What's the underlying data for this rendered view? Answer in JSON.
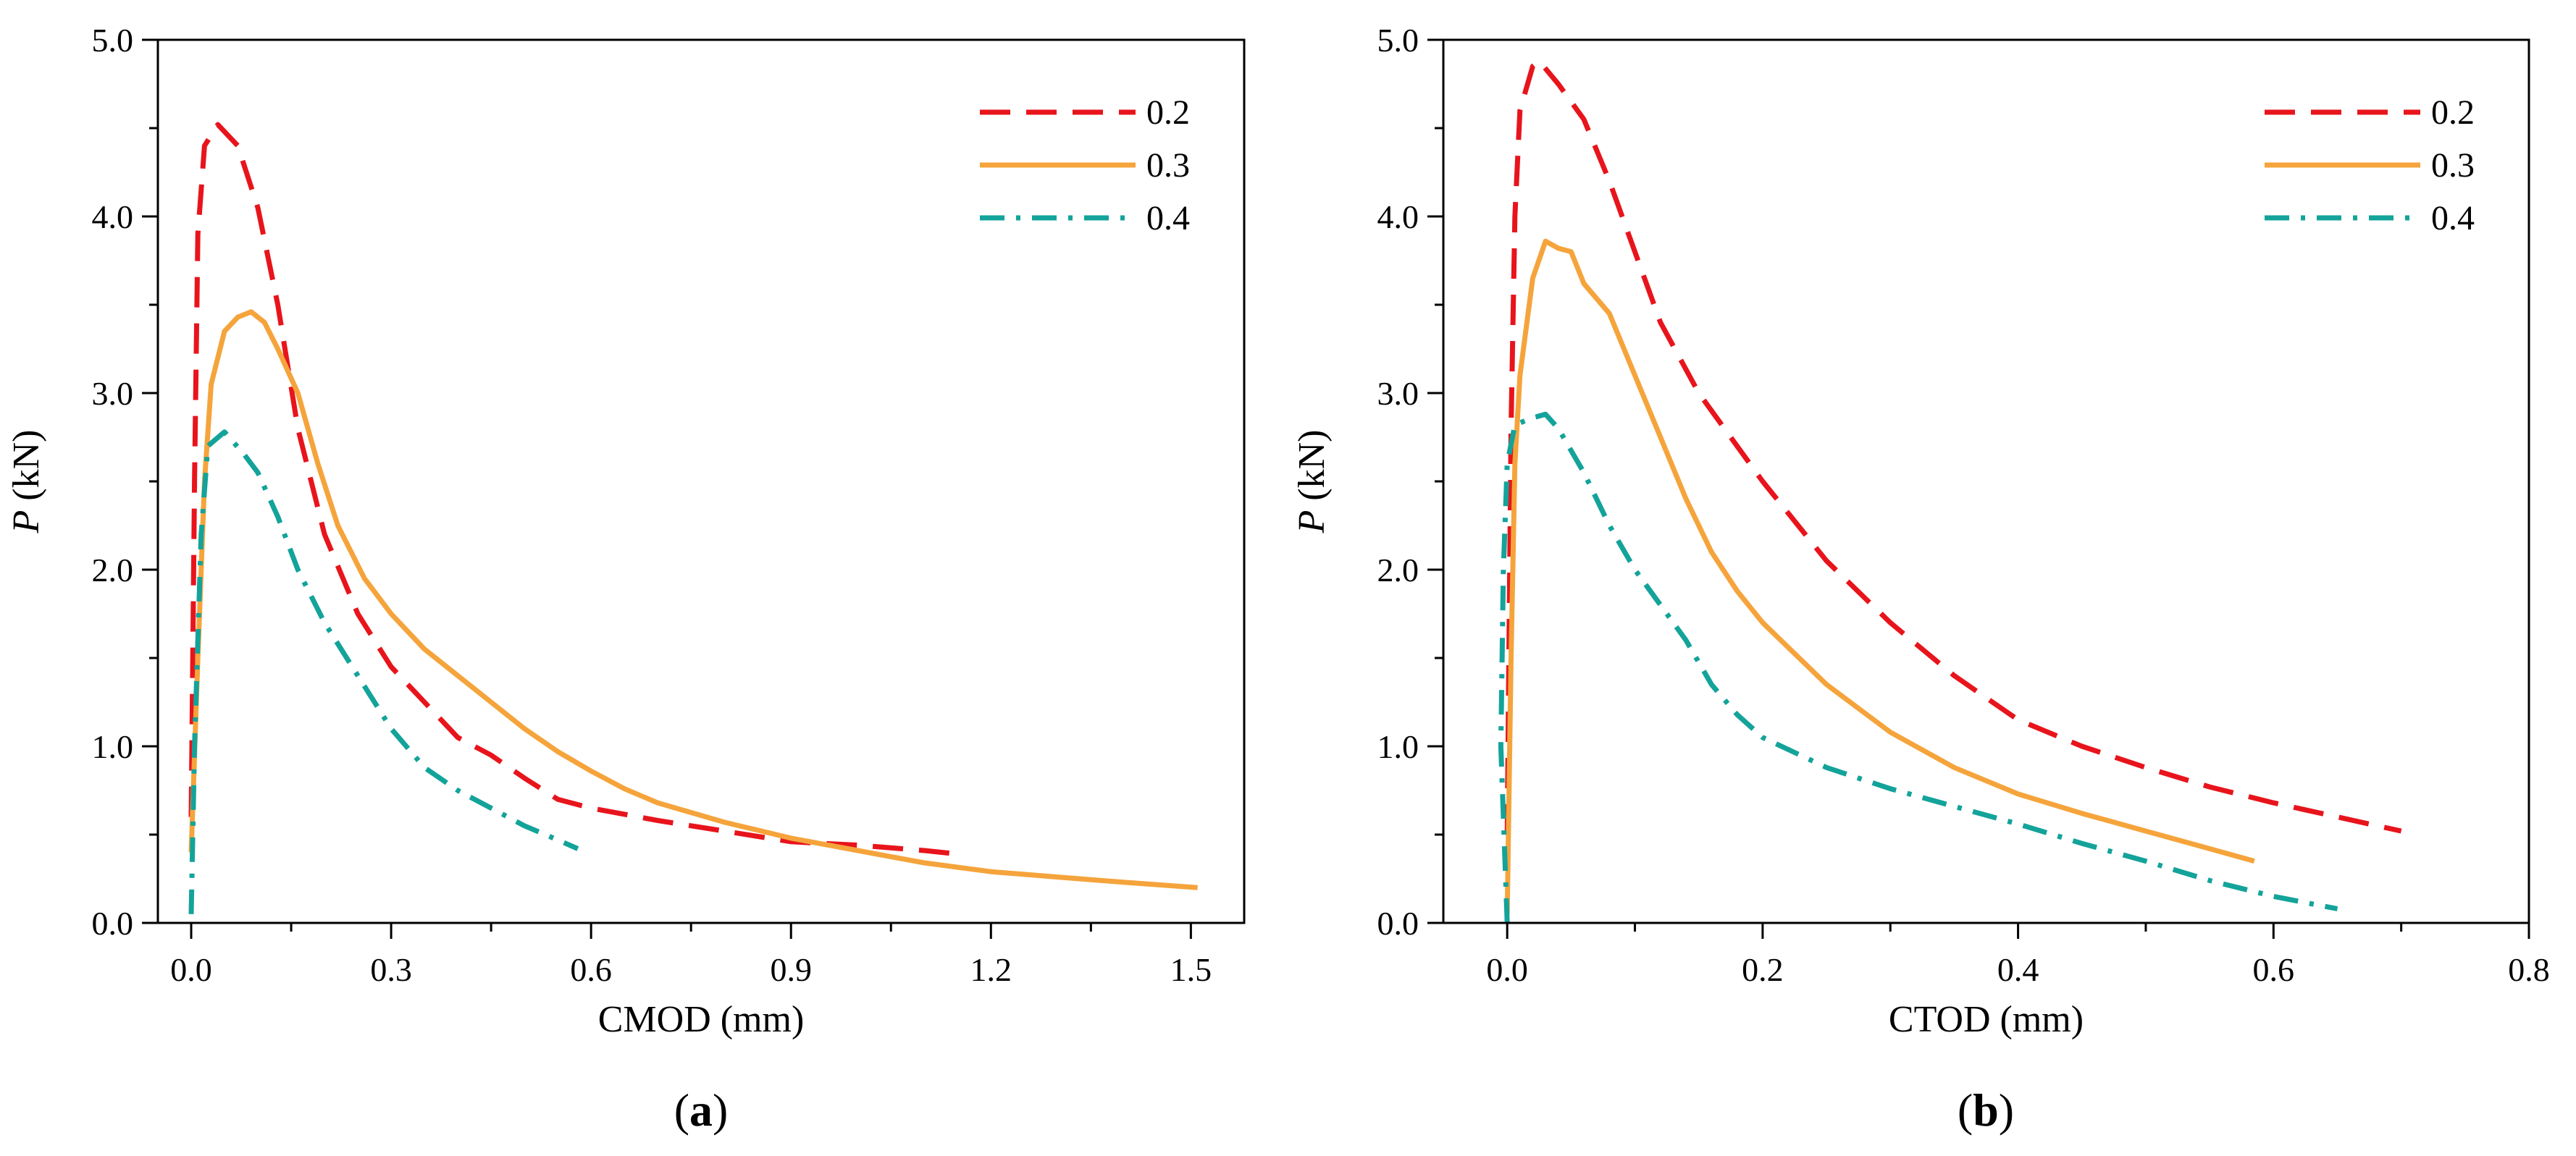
{
  "chart_data": [
    {
      "type": "line",
      "panel_label": "(a)",
      "panel_letter": "a",
      "xlabel": "CMOD (mm)",
      "ylabel_var": "P",
      "ylabel_unit": " (kN)",
      "xlim": [
        -0.05,
        1.58
      ],
      "ylim": [
        0,
        5.0
      ],
      "xticks": [
        0.0,
        0.3,
        0.6,
        0.9,
        1.2,
        1.5
      ],
      "xtick_labels": [
        "0.0",
        "0.3",
        "0.6",
        "0.9",
        "1.2",
        "1.5"
      ],
      "yticks": [
        0.0,
        1.0,
        2.0,
        3.0,
        4.0,
        5.0
      ],
      "ytick_labels": [
        "0.0",
        "1.0",
        "2.0",
        "3.0",
        "4.0",
        "5.0"
      ],
      "grid": false,
      "legend_position": "top-right",
      "series": [
        {
          "name": "0.2",
          "color": "#e8141c",
          "dash": "dashed",
          "points": [
            [
              0,
              0.6
            ],
            [
              0.005,
              2.5
            ],
            [
              0.01,
              3.9
            ],
            [
              0.02,
              4.4
            ],
            [
              0.04,
              4.52
            ],
            [
              0.07,
              4.4
            ],
            [
              0.1,
              4.05
            ],
            [
              0.13,
              3.5
            ],
            [
              0.16,
              2.8
            ],
            [
              0.2,
              2.2
            ],
            [
              0.25,
              1.75
            ],
            [
              0.3,
              1.45
            ],
            [
              0.35,
              1.25
            ],
            [
              0.4,
              1.05
            ],
            [
              0.45,
              0.95
            ],
            [
              0.5,
              0.82
            ],
            [
              0.55,
              0.7
            ],
            [
              0.6,
              0.65
            ],
            [
              0.7,
              0.58
            ],
            [
              0.8,
              0.52
            ],
            [
              0.9,
              0.46
            ],
            [
              1.0,
              0.44
            ],
            [
              1.1,
              0.41
            ],
            [
              1.15,
              0.39
            ]
          ]
        },
        {
          "name": "0.3",
          "color": "#f5a43c",
          "dash": "solid",
          "points": [
            [
              0,
              0.4
            ],
            [
              0.01,
              1.5
            ],
            [
              0.02,
              2.5
            ],
            [
              0.03,
              3.05
            ],
            [
              0.05,
              3.35
            ],
            [
              0.07,
              3.43
            ],
            [
              0.09,
              3.46
            ],
            [
              0.11,
              3.4
            ],
            [
              0.13,
              3.25
            ],
            [
              0.16,
              3.0
            ],
            [
              0.19,
              2.6
            ],
            [
              0.22,
              2.25
            ],
            [
              0.26,
              1.95
            ],
            [
              0.3,
              1.75
            ],
            [
              0.35,
              1.55
            ],
            [
              0.4,
              1.4
            ],
            [
              0.45,
              1.25
            ],
            [
              0.5,
              1.1
            ],
            [
              0.55,
              0.97
            ],
            [
              0.6,
              0.86
            ],
            [
              0.65,
              0.76
            ],
            [
              0.7,
              0.68
            ],
            [
              0.8,
              0.57
            ],
            [
              0.9,
              0.48
            ],
            [
              1.0,
              0.41
            ],
            [
              1.1,
              0.34
            ],
            [
              1.2,
              0.29
            ],
            [
              1.3,
              0.26
            ],
            [
              1.4,
              0.23
            ],
            [
              1.51,
              0.2
            ]
          ]
        },
        {
          "name": "0.4",
          "color": "#13a39a",
          "dash": "dashdot",
          "points": [
            [
              0,
              0.05
            ],
            [
              0.005,
              1.0
            ],
            [
              0.015,
              2.2
            ],
            [
              0.025,
              2.7
            ],
            [
              0.05,
              2.78
            ],
            [
              0.08,
              2.65
            ],
            [
              0.1,
              2.55
            ],
            [
              0.13,
              2.3
            ],
            [
              0.16,
              2.0
            ],
            [
              0.2,
              1.7
            ],
            [
              0.25,
              1.4
            ],
            [
              0.3,
              1.1
            ],
            [
              0.35,
              0.88
            ],
            [
              0.4,
              0.75
            ],
            [
              0.45,
              0.65
            ],
            [
              0.5,
              0.55
            ],
            [
              0.55,
              0.47
            ],
            [
              0.58,
              0.42
            ]
          ]
        }
      ]
    },
    {
      "type": "line",
      "panel_label": "(b)",
      "panel_letter": "b",
      "xlabel": "CTOD (mm)",
      "ylabel_var": "P",
      "ylabel_unit": " (kN)",
      "xlim": [
        -0.05,
        0.8
      ],
      "ylim": [
        0,
        5.0
      ],
      "xticks": [
        0.0,
        0.2,
        0.4,
        0.6,
        0.8
      ],
      "xtick_labels": [
        "0.0",
        "0.2",
        "0.4",
        "0.6",
        "0.8"
      ],
      "yticks": [
        0.0,
        1.0,
        2.0,
        3.0,
        4.0,
        5.0
      ],
      "ytick_labels": [
        "0.0",
        "1.0",
        "2.0",
        "3.0",
        "4.0",
        "5.0"
      ],
      "grid": false,
      "legend_position": "top-right",
      "series": [
        {
          "name": "0.2",
          "color": "#e8141c",
          "dash": "dashed",
          "points": [
            [
              0,
              0.5
            ],
            [
              0.003,
              2.8
            ],
            [
              0.006,
              4.0
            ],
            [
              0.01,
              4.6
            ],
            [
              0.02,
              4.85
            ],
            [
              0.025,
              4.88
            ],
            [
              0.04,
              4.75
            ],
            [
              0.06,
              4.55
            ],
            [
              0.08,
              4.2
            ],
            [
              0.1,
              3.8
            ],
            [
              0.12,
              3.4
            ],
            [
              0.15,
              3.0
            ],
            [
              0.18,
              2.7
            ],
            [
              0.2,
              2.5
            ],
            [
              0.25,
              2.05
            ],
            [
              0.3,
              1.7
            ],
            [
              0.35,
              1.4
            ],
            [
              0.4,
              1.15
            ],
            [
              0.45,
              1.0
            ],
            [
              0.5,
              0.88
            ],
            [
              0.55,
              0.77
            ],
            [
              0.6,
              0.68
            ],
            [
              0.65,
              0.6
            ],
            [
              0.7,
              0.52
            ]
          ]
        },
        {
          "name": "0.3",
          "color": "#f5a43c",
          "dash": "solid",
          "points": [
            [
              0,
              0.05
            ],
            [
              0.003,
              1.5
            ],
            [
              0.006,
              2.6
            ],
            [
              0.01,
              3.1
            ],
            [
              0.02,
              3.65
            ],
            [
              0.03,
              3.86
            ],
            [
              0.04,
              3.82
            ],
            [
              0.05,
              3.8
            ],
            [
              0.06,
              3.62
            ],
            [
              0.08,
              3.45
            ],
            [
              0.1,
              3.1
            ],
            [
              0.12,
              2.75
            ],
            [
              0.14,
              2.4
            ],
            [
              0.16,
              2.1
            ],
            [
              0.18,
              1.88
            ],
            [
              0.2,
              1.7
            ],
            [
              0.25,
              1.35
            ],
            [
              0.3,
              1.08
            ],
            [
              0.35,
              0.88
            ],
            [
              0.4,
              0.73
            ],
            [
              0.45,
              0.62
            ],
            [
              0.5,
              0.52
            ],
            [
              0.55,
              0.42
            ],
            [
              0.585,
              0.35
            ]
          ]
        },
        {
          "name": "0.4",
          "color": "#13a39a",
          "dash": "dashdot",
          "points": [
            [
              0,
              0.0
            ],
            [
              -0.005,
              1.0
            ],
            [
              -0.003,
              2.0
            ],
            [
              0.0,
              2.6
            ],
            [
              0.006,
              2.82
            ],
            [
              0.02,
              2.86
            ],
            [
              0.03,
              2.88
            ],
            [
              0.04,
              2.8
            ],
            [
              0.06,
              2.55
            ],
            [
              0.08,
              2.25
            ],
            [
              0.1,
              2.0
            ],
            [
              0.12,
              1.8
            ],
            [
              0.14,
              1.6
            ],
            [
              0.16,
              1.35
            ],
            [
              0.18,
              1.18
            ],
            [
              0.2,
              1.05
            ],
            [
              0.25,
              0.88
            ],
            [
              0.3,
              0.76
            ],
            [
              0.35,
              0.66
            ],
            [
              0.4,
              0.56
            ],
            [
              0.45,
              0.45
            ],
            [
              0.5,
              0.35
            ],
            [
              0.55,
              0.24
            ],
            [
              0.6,
              0.15
            ],
            [
              0.65,
              0.08
            ]
          ]
        }
      ]
    }
  ]
}
